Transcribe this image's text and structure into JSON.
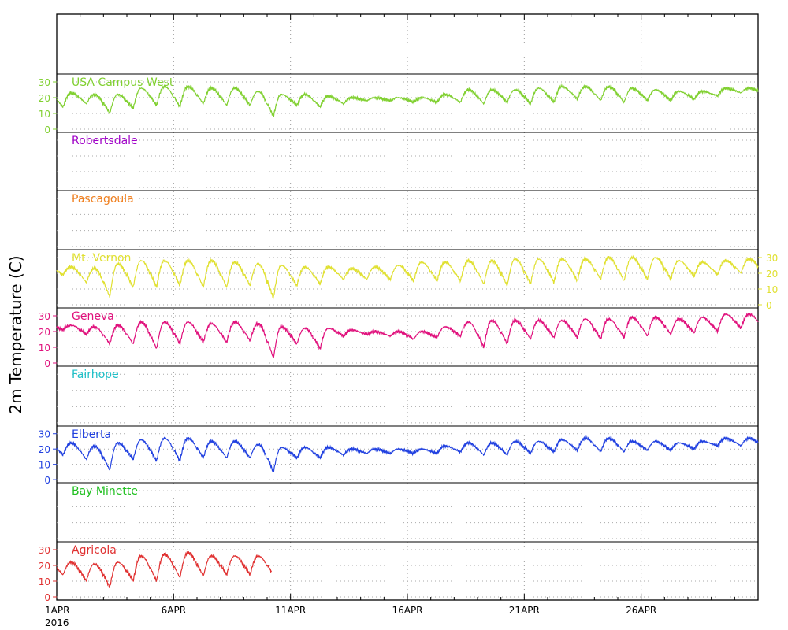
{
  "chart_data": {
    "type": "line",
    "ylabel": "2m Temperature (C)",
    "x_start": "2016-04-01",
    "x_end": "2016-04-30",
    "x_ticks": [
      {
        "line1": "1APR",
        "line2": "2016"
      },
      {
        "line1": "6APR",
        "line2": ""
      },
      {
        "line1": "11APR",
        "line2": ""
      },
      {
        "line1": "16APR",
        "line2": ""
      },
      {
        "line1": "21APR",
        "line2": ""
      },
      {
        "line1": "26APR",
        "line2": ""
      }
    ],
    "ylim": [
      -2,
      35
    ],
    "y_ticks": [
      0,
      10,
      20,
      30
    ],
    "grid": true,
    "series": [
      {
        "name": "USA Campus West",
        "color": "#80d030",
        "axis_side": "left",
        "daily_min": [
          14,
          16,
          10,
          13,
          15,
          14,
          16,
          15,
          15,
          8,
          15,
          14,
          16,
          18,
          18,
          17,
          17,
          17,
          16,
          17,
          16,
          17,
          19,
          18,
          17,
          18,
          18,
          19,
          21,
          23
        ],
        "daily_max": [
          23,
          22,
          22,
          26,
          27,
          27,
          26,
          26,
          24,
          22,
          22,
          21,
          20,
          20,
          20,
          20,
          22,
          25,
          25,
          25,
          26,
          27,
          27,
          27,
          26,
          25,
          24,
          24,
          26,
          26
        ]
      },
      {
        "name": "Robertsdale",
        "color": "#a000c8",
        "axis_side": "none"
      },
      {
        "name": "Pascagoula",
        "color": "#f08020",
        "axis_side": "none"
      },
      {
        "name": "Mt. Vernon",
        "color": "#e0e030",
        "axis_side": "right",
        "daily_min": [
          19,
          14,
          5,
          11,
          11,
          12,
          11,
          11,
          12,
          4,
          12,
          13,
          16,
          16,
          16,
          15,
          15,
          15,
          13,
          12,
          13,
          14,
          15,
          16,
          15,
          16,
          16,
          18,
          19,
          20
        ],
        "daily_max": [
          24,
          23,
          26,
          28,
          28,
          28,
          28,
          27,
          26,
          25,
          24,
          24,
          23,
          24,
          25,
          27,
          27,
          28,
          28,
          29,
          29,
          29,
          29,
          30,
          30,
          30,
          28,
          27,
          28,
          29
        ]
      },
      {
        "name": "Geneva",
        "color": "#e0107c",
        "axis_side": "left",
        "daily_min": [
          21,
          18,
          12,
          12,
          9,
          12,
          13,
          13,
          14,
          3,
          12,
          9,
          17,
          18,
          17,
          15,
          16,
          17,
          10,
          12,
          15,
          16,
          16,
          15,
          16,
          17,
          18,
          19,
          20,
          22
        ],
        "daily_max": [
          24,
          23,
          24,
          26,
          26,
          26,
          25,
          26,
          25,
          23,
          22,
          22,
          21,
          20,
          20,
          20,
          23,
          26,
          27,
          27,
          27,
          27,
          28,
          28,
          29,
          29,
          28,
          29,
          31,
          31
        ]
      },
      {
        "name": "Fairhope",
        "color": "#20c0c8",
        "axis_side": "none"
      },
      {
        "name": "Elberta",
        "color": "#2040e0",
        "axis_side": "left",
        "daily_min": [
          16,
          13,
          6,
          13,
          12,
          12,
          14,
          14,
          14,
          5,
          14,
          14,
          16,
          17,
          17,
          17,
          17,
          18,
          16,
          16,
          17,
          18,
          19,
          18,
          18,
          19,
          19,
          20,
          22,
          22
        ],
        "daily_max": [
          24,
          22,
          24,
          26,
          27,
          27,
          25,
          25,
          23,
          21,
          21,
          21,
          20,
          20,
          20,
          20,
          22,
          24,
          24,
          25,
          25,
          26,
          27,
          27,
          25,
          25,
          24,
          25,
          27,
          27
        ]
      },
      {
        "name": "Bay Minette",
        "color": "#20c020",
        "axis_side": "none"
      },
      {
        "name": "Agricola",
        "color": "#e03030",
        "axis_side": "left",
        "end_day": 9.2,
        "daily_min": [
          14,
          10,
          6,
          10,
          10,
          12,
          13,
          14,
          14
        ],
        "daily_max": [
          22,
          21,
          22,
          26,
          27,
          28,
          26,
          26,
          26
        ]
      }
    ]
  }
}
